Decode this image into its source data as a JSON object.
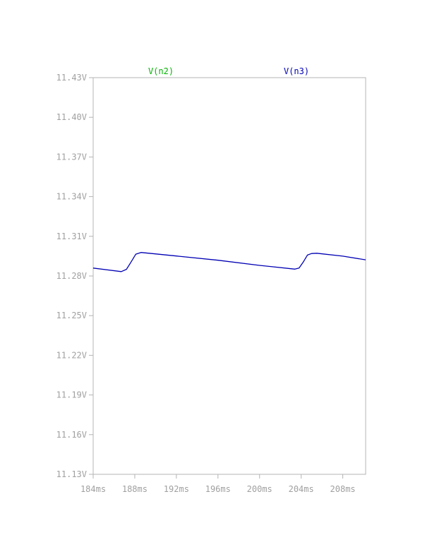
{
  "chart_data": {
    "type": "line",
    "title": "",
    "xlabel": "",
    "ylabel": "",
    "xlim": [
      184,
      210.2
    ],
    "ylim": [
      11.13,
      11.43
    ],
    "x_ticks": [
      184,
      188,
      192,
      196,
      200,
      204,
      208
    ],
    "x_tick_labels": [
      "184ms",
      "188ms",
      "192ms",
      "196ms",
      "200ms",
      "204ms",
      "208ms"
    ],
    "y_ticks": [
      11.43,
      11.4,
      11.37,
      11.34,
      11.31,
      11.28,
      11.25,
      11.22,
      11.19,
      11.16,
      11.13
    ],
    "y_tick_labels": [
      "11.43V",
      "11.40V",
      "11.37V",
      "11.34V",
      "11.31V",
      "11.28V",
      "11.25V",
      "11.22V",
      "11.19V",
      "11.16V",
      "11.13V"
    ],
    "grid": false,
    "legend": [
      {
        "label": "V(n2)",
        "color": "#00b400"
      },
      {
        "label": "V(n3)",
        "color": "#0000b4"
      }
    ],
    "series": [
      {
        "name": "V(n3)",
        "color": "#0000b4",
        "x": [
          184.0,
          186.7,
          187.2,
          187.6,
          188.1,
          188.6,
          192.0,
          196.0,
          200.0,
          203.4,
          203.8,
          204.2,
          204.6,
          205.0,
          205.5,
          208.0,
          210.2
        ],
        "y": [
          11.286,
          11.2833,
          11.285,
          11.29,
          11.2965,
          11.2978,
          11.2951,
          11.2919,
          11.288,
          11.2852,
          11.286,
          11.2905,
          11.2958,
          11.297,
          11.2972,
          11.295,
          11.2922
        ]
      }
    ]
  }
}
